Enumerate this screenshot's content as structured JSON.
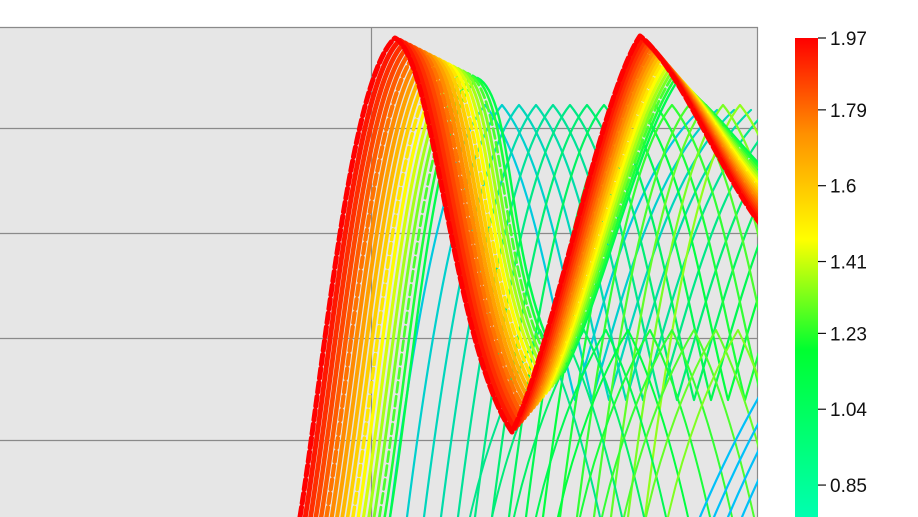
{
  "chart_data": {
    "type": "line",
    "title": "",
    "xlabel": "",
    "ylabel": "",
    "grid": true,
    "colorbar": {
      "position": "right",
      "ticks": [
        "1.97",
        "1.79",
        "1.6",
        "1.41",
        "1.23",
        "1.04",
        "0.85"
      ],
      "tick_values": [
        1.97,
        1.79,
        1.6,
        1.41,
        1.23,
        1.04,
        0.85
      ],
      "range": [
        0.77,
        1.97
      ],
      "colormap": [
        "#00bfff",
        "#00ff40",
        "#ffff00",
        "#ff8000",
        "#ff0000"
      ]
    }
  }
}
